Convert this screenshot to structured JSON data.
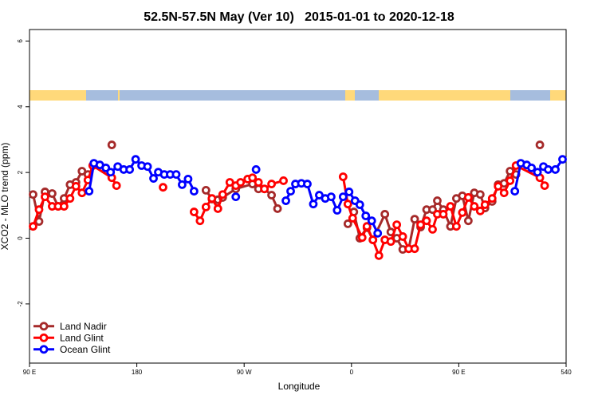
{
  "chart_data": {
    "type": "line",
    "title": "52.5N-57.5N May (Ver 10)   2015-01-01 to 2020-12-18",
    "x_label": "Longitude",
    "y_label": "XCO2 - MLO trend (ppm)",
    "xlim": [
      90,
      540
    ],
    "ylim": [
      -3.8,
      6.35
    ],
    "xticks": [
      {
        "value": 90,
        "label": "90 E"
      },
      180,
      {
        "value": 270,
        "label": "90 W"
      },
      {
        "value": 360,
        "label": "0"
      },
      {
        "value": 450,
        "label": "90 E"
      },
      540
    ],
    "yticks": [
      -2,
      0,
      2,
      4,
      6
    ],
    "legend": "bottom-left",
    "series": [
      {
        "name": "Land Nadir",
        "color": "#a52a2a",
        "x": [
          93,
          98,
          103,
          109,
          114,
          119,
          124,
          129,
          134,
          139,
          null,
          159,
          null,
          238,
          243,
          248,
          252,
          263,
          277,
          282,
          287,
          293,
          298,
          null,
          357,
          362,
          367,
          373,
          378,
          388,
          393,
          398,
          403,
          408,
          413,
          418,
          423,
          428,
          432,
          437,
          443,
          448,
          453,
          458,
          463,
          468,
          472,
          478,
          483,
          488,
          493,
          498,
          null,
          518
        ],
        "values": [
          1.33,
          0.51,
          1.41,
          1.36,
          0.97,
          1.21,
          1.63,
          1.7,
          2.04,
          1.94,
          null,
          2.84,
          null,
          1.46,
          1.19,
          1.17,
          1.24,
          1.5,
          1.65,
          1.5,
          1.5,
          1.31,
          0.9,
          null,
          0.44,
          0.8,
          0.0,
          0.32,
          -0.05,
          0.73,
          0.19,
          0.0,
          -0.34,
          -0.32,
          0.58,
          0.34,
          0.87,
          0.87,
          1.14,
          0.87,
          0.36,
          1.21,
          1.29,
          0.53,
          1.38,
          1.33,
          0.92,
          1.12,
          1.63,
          1.67,
          2.04,
          1.94,
          null,
          2.84
        ]
      },
      {
        "name": "Land Glint",
        "color": "#ff0000",
        "x": [
          93,
          98,
          103,
          109,
          114,
          119,
          124,
          129,
          134,
          139,
          143,
          159,
          163,
          null,
          202,
          null,
          228,
          233,
          238,
          243,
          248,
          252,
          258,
          263,
          267,
          273,
          277,
          282,
          287,
          293,
          303,
          null,
          353,
          357,
          361,
          369,
          373,
          378,
          383,
          388,
          393,
          398,
          403,
          408,
          413,
          418,
          423,
          428,
          432,
          437,
          443,
          448,
          453,
          458,
          463,
          468,
          472,
          478,
          483,
          488,
          493,
          498,
          518,
          522
        ],
        "values": [
          0.36,
          0.87,
          1.26,
          0.97,
          0.97,
          0.97,
          1.21,
          1.58,
          1.38,
          1.77,
          2.21,
          1.84,
          1.6,
          null,
          1.55,
          null,
          0.8,
          0.53,
          0.95,
          1.21,
          0.9,
          1.33,
          1.7,
          1.6,
          1.7,
          1.8,
          1.84,
          1.7,
          1.5,
          1.65,
          1.75,
          null,
          1.87,
          1.04,
          0.61,
          0.02,
          0.36,
          -0.05,
          -0.53,
          -0.05,
          -0.1,
          0.41,
          0.05,
          -0.32,
          -0.32,
          0.41,
          0.53,
          0.27,
          0.73,
          0.73,
          0.97,
          0.36,
          0.78,
          1.24,
          0.97,
          0.83,
          1.02,
          1.21,
          1.58,
          1.38,
          1.75,
          2.21,
          1.84,
          1.6
        ]
      },
      {
        "name": "Ocean Glint",
        "color": "#0000ff",
        "x": [
          140,
          144,
          149,
          154,
          158,
          164,
          169,
          174,
          179,
          184,
          189,
          194,
          198,
          203,
          208,
          213,
          218,
          223,
          228,
          null,
          263,
          null,
          280,
          null,
          305,
          309,
          313,
          318,
          323,
          328,
          333,
          338,
          343,
          348,
          353,
          358,
          363,
          367,
          372,
          377,
          382,
          null,
          497,
          502,
          507,
          511,
          516,
          521,
          525,
          531,
          537
        ],
        "values": [
          1.43,
          2.28,
          2.23,
          2.14,
          2.01,
          2.18,
          2.09,
          2.09,
          2.4,
          2.21,
          2.18,
          1.82,
          2.01,
          1.94,
          1.94,
          1.94,
          1.63,
          1.8,
          1.43,
          null,
          1.26,
          null,
          2.09,
          null,
          1.14,
          1.43,
          1.65,
          1.67,
          1.65,
          1.04,
          1.31,
          1.21,
          1.26,
          0.85,
          1.26,
          1.41,
          1.14,
          1.02,
          0.68,
          0.53,
          0.15,
          null,
          1.43,
          2.28,
          2.23,
          2.14,
          2.01,
          2.18,
          2.09,
          2.09,
          2.4
        ]
      }
    ]
  }
}
